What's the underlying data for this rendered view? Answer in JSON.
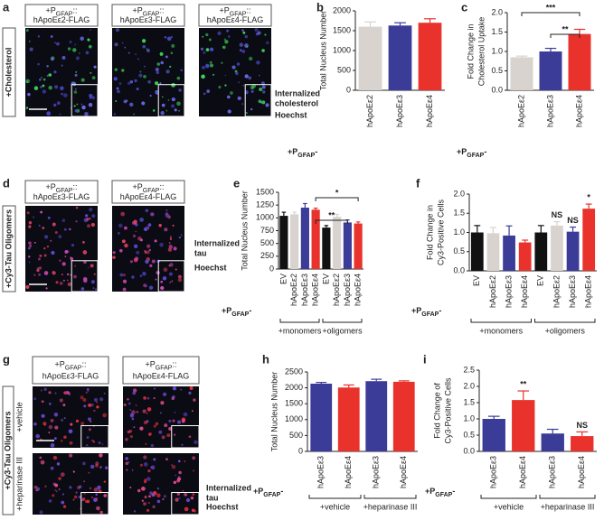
{
  "panels": [
    {
      "letter": "a",
      "headers": [
        {
          "p": "+P",
          "sub": "GFAP",
          "suffix": "::",
          "name": "hApoEε2-FLAG"
        },
        {
          "p": "+P",
          "sub": "GFAP",
          "suffix": "::",
          "name": "hApoEε3-FLAG"
        },
        {
          "p": "+P",
          "sub": "GFAP",
          "suffix": "::",
          "name": "hApoEε4-FLAG"
        }
      ],
      "side_label": "+Cholesterol",
      "stain": [
        "Internalized",
        "cholesterol"
      ],
      "counter": "Hoechst"
    },
    {
      "letter": "d",
      "headers": [
        {
          "p": "+P",
          "sub": "GFAP",
          "suffix": "::",
          "name": "hApoEε3-FLAG"
        },
        {
          "p": "+P",
          "sub": "GFAP",
          "suffix": "::",
          "name": "hApoEε4-FLAG"
        }
      ],
      "side_label": "+Cy3-Tau Oligomers",
      "stain": [
        "Internalized",
        "tau"
      ],
      "counter": "Hoechst"
    },
    {
      "letter": "g",
      "headers": [
        {
          "p": "+P",
          "sub": "GFAP",
          "suffix": "::",
          "name": "hApoEε3-FLAG"
        },
        {
          "p": "+P",
          "sub": "GFAP",
          "suffix": "::",
          "name": "hApoEε4-FLAG"
        }
      ],
      "side_label": "+Cy3-Tau Oligomers",
      "rows": [
        "+vehicle",
        "+heparinase III"
      ],
      "stain": [
        "Internalized",
        "tau"
      ],
      "counter": "Hoechst"
    }
  ],
  "chart_data": [
    {
      "type": "bar",
      "letter": "b",
      "ylabel": [
        "Total Nucleus Number"
      ],
      "categories": [
        "hApoEε2",
        "hApoEε3",
        "hApoEε4"
      ],
      "values": [
        1600,
        1630,
        1700
      ],
      "errors": [
        120,
        70,
        100
      ],
      "colors": [
        "#d8d3ce",
        "#3b3b98",
        "#e8322b"
      ],
      "ylim": [
        0,
        2000
      ],
      "yticks": [
        0,
        500,
        1000,
        1500,
        2000
      ],
      "x_prefix": {
        "p": "+P",
        "sub": "GFAP",
        "suffix": "-"
      }
    },
    {
      "type": "bar",
      "letter": "c",
      "ylabel": [
        "Fold Change in",
        "Cholesterol Uptake"
      ],
      "categories": [
        "hApoEε2",
        "hApoEε3",
        "hApoEε4"
      ],
      "values": [
        0.85,
        1.0,
        1.45
      ],
      "errors": [
        0.03,
        0.08,
        0.12
      ],
      "colors": [
        "#d8d3ce",
        "#3b3b98",
        "#e8322b"
      ],
      "ylim": [
        0,
        2
      ],
      "yticks": [
        {
          "value": 0,
          "label": "0.0"
        },
        0.5,
        {
          "value": 1,
          "label": "1.0"
        },
        1.5,
        {
          "value": 2,
          "label": "2.0"
        }
      ],
      "x_prefix": {
        "p": "+P",
        "sub": "GFAP",
        "suffix": "-"
      },
      "annotations": [
        "***",
        "**"
      ]
    },
    {
      "type": "bar",
      "letter": "e",
      "ylabel": [
        "Total Nucleus Number"
      ],
      "categories": [
        "EV",
        "hApoEε2",
        "hApoEε3",
        "hApoEε4",
        "EV",
        "hApoEε2",
        "hApoEε3",
        "hApoEε4"
      ],
      "values": [
        1040,
        1070,
        1200,
        1160,
        810,
        1020,
        910,
        890
      ],
      "errors": [
        70,
        40,
        80,
        30,
        40,
        50,
        50,
        30
      ],
      "colors": [
        "#111111",
        "#d8d3ce",
        "#3b3b98",
        "#e8322b",
        "#111111",
        "#d8d3ce",
        "#3b3b98",
        "#e8322b"
      ],
      "ylim": [
        0,
        1500
      ],
      "yticks": [
        0,
        250,
        500,
        750,
        1000,
        1250,
        1500
      ],
      "x_prefix": {
        "p": "+P",
        "sub": "GFAP",
        "suffix": "-"
      },
      "groups": [
        "+monomers",
        "+oligomers"
      ],
      "annotations": [
        "*",
        "**"
      ]
    },
    {
      "type": "bar",
      "letter": "f",
      "ylabel": [
        "Fold Change in",
        "Cy3-Positive Cells"
      ],
      "categories": [
        "EV",
        "hApoEε2",
        "hApoEε3",
        "hApoEε4",
        "EV",
        "hApoEε2",
        "hApoEε3",
        "hApoEε4"
      ],
      "values": [
        1.0,
        0.98,
        0.92,
        0.74,
        1.0,
        1.18,
        1.02,
        1.62
      ],
      "errors": [
        0.18,
        0.15,
        0.25,
        0.06,
        0.18,
        0.1,
        0.12,
        0.12
      ],
      "colors": [
        "#111111",
        "#d8d3ce",
        "#3b3b98",
        "#e8322b",
        "#111111",
        "#d8d3ce",
        "#3b3b98",
        "#e8322b"
      ],
      "ylim": [
        0,
        2
      ],
      "yticks": [
        {
          "value": 0,
          "label": "0.0"
        },
        0.5,
        {
          "value": 1,
          "label": "1.0"
        },
        1.5,
        {
          "value": 2,
          "label": "2.0"
        }
      ],
      "x_prefix": {
        "p": "+P",
        "sub": "GFAP",
        "suffix": "-"
      },
      "groups": [
        "+monomers",
        "+oligomers"
      ],
      "annotations": [
        "NS",
        "NS",
        "*"
      ]
    },
    {
      "type": "bar",
      "letter": "h",
      "ylabel": [
        "Total Nucleus Number"
      ],
      "categories": [
        "hApoEε3",
        "hApoEε4",
        "hApoEε3",
        "hApoEε4"
      ],
      "values": [
        2130,
        2010,
        2210,
        2190
      ],
      "errors": [
        40,
        80,
        60,
        30
      ],
      "colors": [
        "#3b3b98",
        "#e8322b",
        "#3b3b98",
        "#e8322b"
      ],
      "ylim": [
        0,
        2500
      ],
      "yticks": [
        0,
        500,
        1000,
        1500,
        2000,
        2500
      ],
      "x_prefix": {
        "p": "+P",
        "sub": "GFAP",
        "suffix": "-"
      },
      "groups": [
        "+vehicle",
        "+heparinase III"
      ]
    },
    {
      "type": "bar",
      "letter": "i",
      "ylabel": [
        "Fold Change of",
        "Cy3-Positive Cells"
      ],
      "categories": [
        "hApoEε3",
        "hApoEε4",
        "hApoEε3",
        "hApoEε4"
      ],
      "values": [
        1.0,
        1.58,
        0.55,
        0.47
      ],
      "errors": [
        0.08,
        0.28,
        0.13,
        0.13
      ],
      "colors": [
        "#3b3b98",
        "#e8322b",
        "#3b3b98",
        "#e8322b"
      ],
      "ylim": [
        0,
        2.5
      ],
      "yticks": [
        {
          "value": 0,
          "label": "0.0"
        },
        0.5,
        {
          "value": 1,
          "label": "1.0"
        },
        1.5,
        {
          "value": 2,
          "label": "2.0"
        },
        2.5
      ],
      "x_prefix": {
        "p": "+P",
        "sub": "GFAP",
        "suffix": "-"
      },
      "groups": [
        "+vehicle",
        "+heparinase III"
      ],
      "annotations": [
        "**",
        "NS"
      ]
    }
  ]
}
